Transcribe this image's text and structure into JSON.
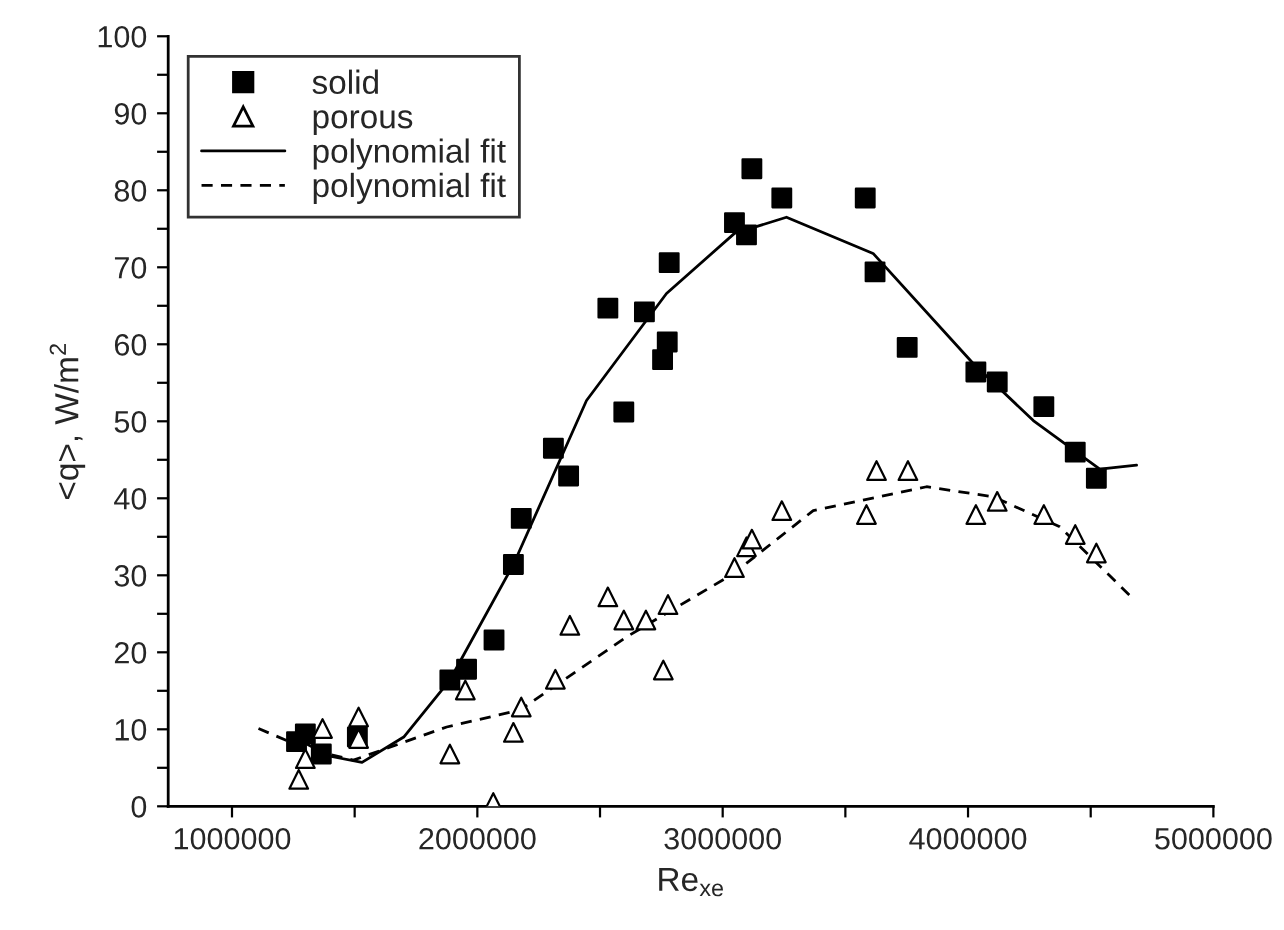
{
  "chart_data": {
    "type": "scatter",
    "xlabel": "Re$_{xe}$",
    "ylabel": "<q>, W/m$^{2}$",
    "xlim": [
      740000,
      5000000
    ],
    "xticks": [
      1000000,
      {
        "value": 1500000,
        "label": null
      },
      2000000,
      {
        "value": 2500000,
        "label": null
      },
      3000000,
      {
        "value": 3500000,
        "label": null
      },
      4000000,
      {
        "value": 4500000,
        "label": null
      },
      5000000
    ],
    "ylim": [
      0,
      100
    ],
    "yticks": [
      0,
      {
        "value": 5,
        "label": null
      },
      10,
      {
        "value": 15,
        "label": null
      },
      20,
      {
        "value": 25,
        "label": null
      },
      30,
      {
        "value": 35,
        "label": null
      },
      40,
      {
        "value": 45,
        "label": null
      },
      50,
      {
        "value": 55,
        "label": null
      },
      60,
      {
        "value": 65,
        "label": null
      },
      70,
      {
        "value": 75,
        "label": null
      },
      80,
      {
        "value": 85,
        "label": null
      },
      90,
      {
        "value": 95,
        "label": null
      },
      100
    ],
    "grid": false,
    "legend": "top left",
    "series": [
      {
        "name": "solid",
        "marker": "square",
        "color": "#000000",
        "x": [
          1263000,
          1299000,
          1364000,
          1511000,
          1888000,
          1956000,
          2068000,
          2147000,
          2179000,
          2310000,
          2372000,
          2532000,
          2597000,
          2681000,
          2755000,
          2774000,
          2782000,
          3048000,
          3097000,
          3119000,
          3241000,
          3581000,
          3621000,
          3752000,
          4032000,
          4119000,
          4309000,
          4437000,
          4523000
        ],
        "values": [
          8.4,
          9.4,
          6.8,
          9.0,
          16.4,
          17.8,
          21.6,
          31.4,
          37.4,
          46.5,
          42.9,
          64.7,
          51.2,
          64.2,
          58.0,
          60.3,
          70.6,
          75.8,
          74.2,
          82.8,
          79.0,
          79.0,
          69.4,
          59.6,
          56.4,
          55.1,
          51.9,
          46.0,
          42.6
        ]
      },
      {
        "name": "porous",
        "marker": "triangle",
        "color": "#000000",
        "x": [
          1272000,
          1299000,
          1369000,
          1516000,
          1516000,
          1888000,
          1951000,
          2065000,
          2147000,
          2179000,
          2318000,
          2377000,
          2532000,
          2597000,
          2687000,
          2758000,
          2777000,
          3048000,
          3097000,
          3119000,
          3241000,
          3586000,
          3627000,
          3755000,
          4032000,
          4119000,
          4309000,
          4437000,
          4523000
        ],
        "values": [
          3.5,
          6.2,
          10.1,
          11.6,
          8.8,
          6.8,
          15.1,
          0.5,
          9.6,
          12.9,
          16.5,
          23.5,
          27.2,
          24.2,
          24.2,
          17.7,
          26.2,
          31.0,
          33.7,
          34.7,
          38.4,
          37.9,
          43.6,
          43.6,
          37.9,
          39.6,
          37.9,
          35.3,
          32.9
        ]
      },
      {
        "name": "polynomial fit",
        "type": "line",
        "line_style": "solid",
        "color": "#000000",
        "x": [
          1250000,
          1400000,
          1530000,
          1700000,
          1888000,
          2147000,
          2445000,
          2771000,
          3048000,
          3260000,
          3613000,
          4021000,
          4266000,
          4537000,
          4687000
        ],
        "values": [
          9.0,
          6.5,
          5.7,
          9.0,
          16.4,
          31.4,
          52.7,
          66.6,
          74.4,
          76.5,
          71.8,
          57.5,
          50.1,
          43.8,
          44.3
        ]
      },
      {
        "name": "polynomial fit",
        "type": "line",
        "line_style": "dashed",
        "color": "#000000",
        "x": [
          1108000,
          1300000,
          1495000,
          1875000,
          2174000,
          2608000,
          3043000,
          3369000,
          3831000,
          4103000,
          4374000,
          4659000
        ],
        "values": [
          10.1,
          7.5,
          6.0,
          10.3,
          12.5,
          22.0,
          30.2,
          38.4,
          41.5,
          40.2,
          36.3,
          27.4
        ]
      }
    ]
  }
}
